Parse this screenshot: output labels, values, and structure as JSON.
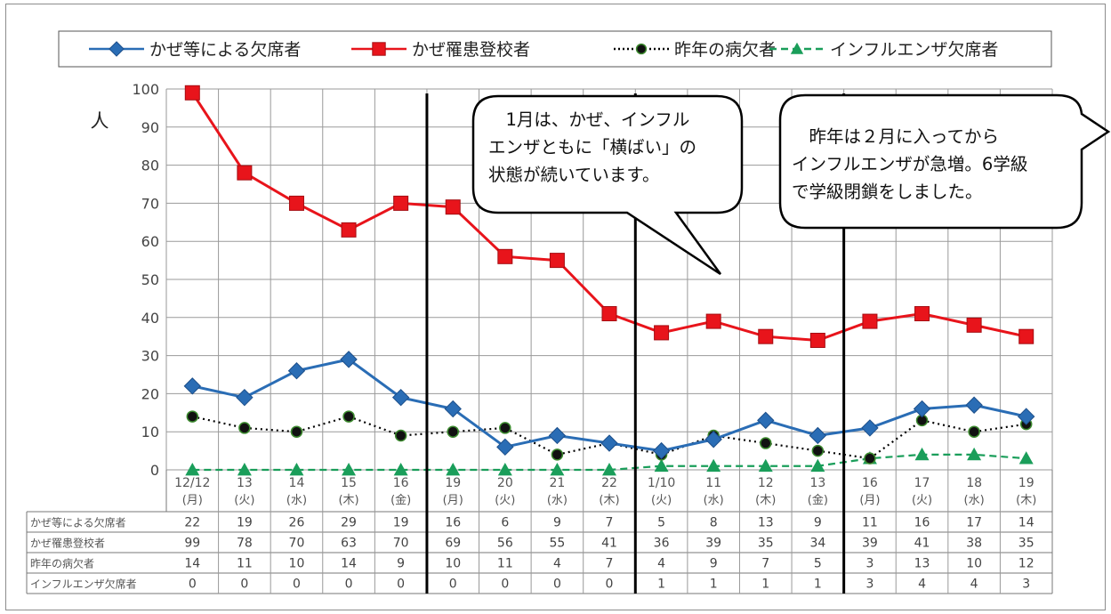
{
  "chart_data": {
    "type": "line",
    "y_unit": "人",
    "ylim": [
      0,
      100
    ],
    "yticks": [
      0,
      10,
      20,
      30,
      40,
      50,
      60,
      70,
      80,
      90,
      100
    ],
    "categories": [
      {
        "date": "12/12",
        "day": "(月)"
      },
      {
        "date": "13",
        "day": "(火)"
      },
      {
        "date": "14",
        "day": "(水)"
      },
      {
        "date": "15",
        "day": "(木)"
      },
      {
        "date": "16",
        "day": "(金)"
      },
      {
        "date": "19",
        "day": "(月)"
      },
      {
        "date": "20",
        "day": "(火)"
      },
      {
        "date": "21",
        "day": "(水)"
      },
      {
        "date": "22",
        "day": "(木)"
      },
      {
        "date": "1/10",
        "day": "(火)"
      },
      {
        "date": "11",
        "day": "(水)"
      },
      {
        "date": "12",
        "day": "(木)"
      },
      {
        "date": "13",
        "day": "(金)"
      },
      {
        "date": "16",
        "day": "(月)"
      },
      {
        "date": "17",
        "day": "(火)"
      },
      {
        "date": "18",
        "day": "(水)"
      },
      {
        "date": "19",
        "day": "(木)"
      }
    ],
    "series": [
      {
        "name": "かぜ等による欠席者",
        "table_label": "かぜ等による欠席者",
        "color": "#2a6db5",
        "marker": "diamond",
        "style": "solid",
        "values": [
          22,
          19,
          26,
          29,
          19,
          16,
          6,
          9,
          7,
          5,
          8,
          13,
          9,
          11,
          16,
          17,
          14
        ]
      },
      {
        "name": "かぜ罹患登校者",
        "table_label": "かぜ罹患登校者",
        "color": "#e8141b",
        "marker": "square",
        "style": "solid",
        "values": [
          99,
          78,
          70,
          63,
          70,
          69,
          56,
          55,
          41,
          36,
          39,
          35,
          34,
          39,
          41,
          38,
          35
        ]
      },
      {
        "name": "昨年の病欠者",
        "table_label": "昨年の病欠者",
        "color": "#000000",
        "marker": "circle",
        "style": "dotted",
        "values": [
          14,
          11,
          10,
          14,
          9,
          10,
          11,
          4,
          7,
          4,
          9,
          7,
          5,
          3,
          13,
          10,
          12
        ]
      },
      {
        "name": "インフルエンザ欠席者",
        "table_label": "インフルエンザ欠席者",
        "color": "#1a9e5a",
        "marker": "triangle",
        "style": "dashed",
        "values": [
          0,
          0,
          0,
          0,
          0,
          0,
          0,
          0,
          0,
          1,
          1,
          1,
          1,
          3,
          4,
          4,
          3
        ]
      }
    ],
    "dividers_after_index": [
      4,
      8,
      12
    ],
    "annotations": [
      {
        "lines": [
          "　1月は、かぜ、インフル",
          "エンザともに「横ばい」の",
          "状態が続いています。"
        ]
      },
      {
        "lines": [
          "　昨年は２月に入ってから",
          "インフルエンザが急増。6学級",
          "で学級閉鎖をしました。"
        ]
      }
    ],
    "grid": true,
    "legend_position": "top"
  }
}
